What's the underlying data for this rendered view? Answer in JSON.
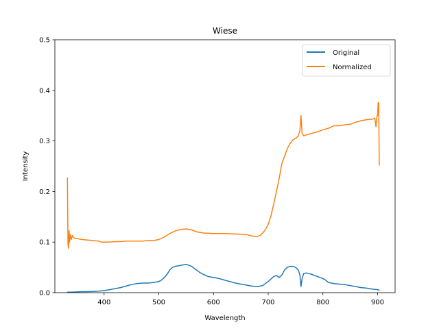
{
  "chart_data": {
    "type": "line",
    "title": "Wiese",
    "xlabel": "Wavelength",
    "ylabel": "Intensity",
    "xlim": [
      310,
      932
    ],
    "ylim": [
      0,
      0.5
    ],
    "xticks": [
      "400",
      "500",
      "600",
      "700",
      "800",
      "900"
    ],
    "xtick_values": [
      400,
      500,
      600,
      700,
      800,
      900
    ],
    "yticks": [
      "0.0",
      "0.1",
      "0.2",
      "0.3",
      "0.4",
      "0.5"
    ],
    "ytick_values": [
      0,
      0.1,
      0.2,
      0.3,
      0.4,
      0.5
    ],
    "grid": false,
    "legend_position": "top-right",
    "series": [
      {
        "name": "Original",
        "color": "#1f77b4",
        "x": [
          333,
          340,
          350,
          360,
          370,
          380,
          390,
          400,
          410,
          420,
          430,
          440,
          450,
          460,
          470,
          480,
          490,
          500,
          505,
          510,
          515,
          520,
          525,
          530,
          535,
          540,
          545,
          550,
          555,
          560,
          565,
          570,
          575,
          580,
          590,
          600,
          610,
          620,
          630,
          640,
          650,
          660,
          670,
          680,
          690,
          695,
          700,
          705,
          710,
          715,
          720,
          725,
          730,
          735,
          740,
          745,
          750,
          755,
          758,
          760,
          762,
          765,
          770,
          780,
          790,
          800,
          805,
          810,
          820,
          830,
          840,
          850,
          860,
          870,
          880,
          890,
          900,
          903
        ],
        "y": [
          0.001,
          0.001,
          0.0015,
          0.002,
          0.002,
          0.0025,
          0.003,
          0.004,
          0.006,
          0.008,
          0.01,
          0.013,
          0.016,
          0.018,
          0.019,
          0.019,
          0.02,
          0.022,
          0.025,
          0.03,
          0.036,
          0.045,
          0.05,
          0.052,
          0.053,
          0.054,
          0.055,
          0.056,
          0.054,
          0.052,
          0.048,
          0.044,
          0.04,
          0.037,
          0.032,
          0.03,
          0.028,
          0.025,
          0.022,
          0.019,
          0.017,
          0.015,
          0.013,
          0.012,
          0.014,
          0.018,
          0.022,
          0.027,
          0.032,
          0.034,
          0.03,
          0.035,
          0.045,
          0.05,
          0.052,
          0.052,
          0.05,
          0.045,
          0.035,
          0.012,
          0.028,
          0.038,
          0.039,
          0.036,
          0.032,
          0.028,
          0.025,
          0.02,
          0.018,
          0.017,
          0.016,
          0.014,
          0.012,
          0.01,
          0.009,
          0.007,
          0.006,
          0.005
        ]
      },
      {
        "name": "Normalized",
        "color": "#ff7f0e",
        "x": [
          333,
          334,
          335,
          336,
          337,
          338,
          340,
          342,
          345,
          350,
          360,
          370,
          380,
          390,
          395,
          400,
          410,
          420,
          430,
          440,
          450,
          460,
          470,
          480,
          490,
          500,
          510,
          520,
          530,
          540,
          550,
          560,
          570,
          580,
          600,
          620,
          640,
          660,
          670,
          680,
          685,
          690,
          695,
          700,
          705,
          710,
          715,
          720,
          725,
          730,
          735,
          740,
          745,
          750,
          755,
          758,
          760,
          762,
          765,
          770,
          780,
          790,
          800,
          810,
          820,
          830,
          840,
          850,
          860,
          870,
          880,
          890,
          895,
          897,
          898,
          899,
          900,
          901,
          902,
          903
        ],
        "y": [
          0.227,
          0.095,
          0.088,
          0.123,
          0.1,
          0.115,
          0.105,
          0.113,
          0.108,
          0.107,
          0.105,
          0.104,
          0.103,
          0.102,
          0.1,
          0.1,
          0.1,
          0.101,
          0.101,
          0.102,
          0.102,
          0.102,
          0.102,
          0.103,
          0.103,
          0.105,
          0.11,
          0.117,
          0.122,
          0.125,
          0.126,
          0.124,
          0.12,
          0.118,
          0.117,
          0.117,
          0.116,
          0.115,
          0.112,
          0.111,
          0.113,
          0.118,
          0.125,
          0.135,
          0.152,
          0.175,
          0.2,
          0.225,
          0.255,
          0.27,
          0.285,
          0.295,
          0.302,
          0.305,
          0.31,
          0.32,
          0.35,
          0.315,
          0.31,
          0.312,
          0.315,
          0.318,
          0.322,
          0.325,
          0.33,
          0.33,
          0.332,
          0.333,
          0.337,
          0.34,
          0.342,
          0.343,
          0.345,
          0.328,
          0.34,
          0.35,
          0.35,
          0.376,
          0.375,
          0.252
        ]
      }
    ]
  }
}
